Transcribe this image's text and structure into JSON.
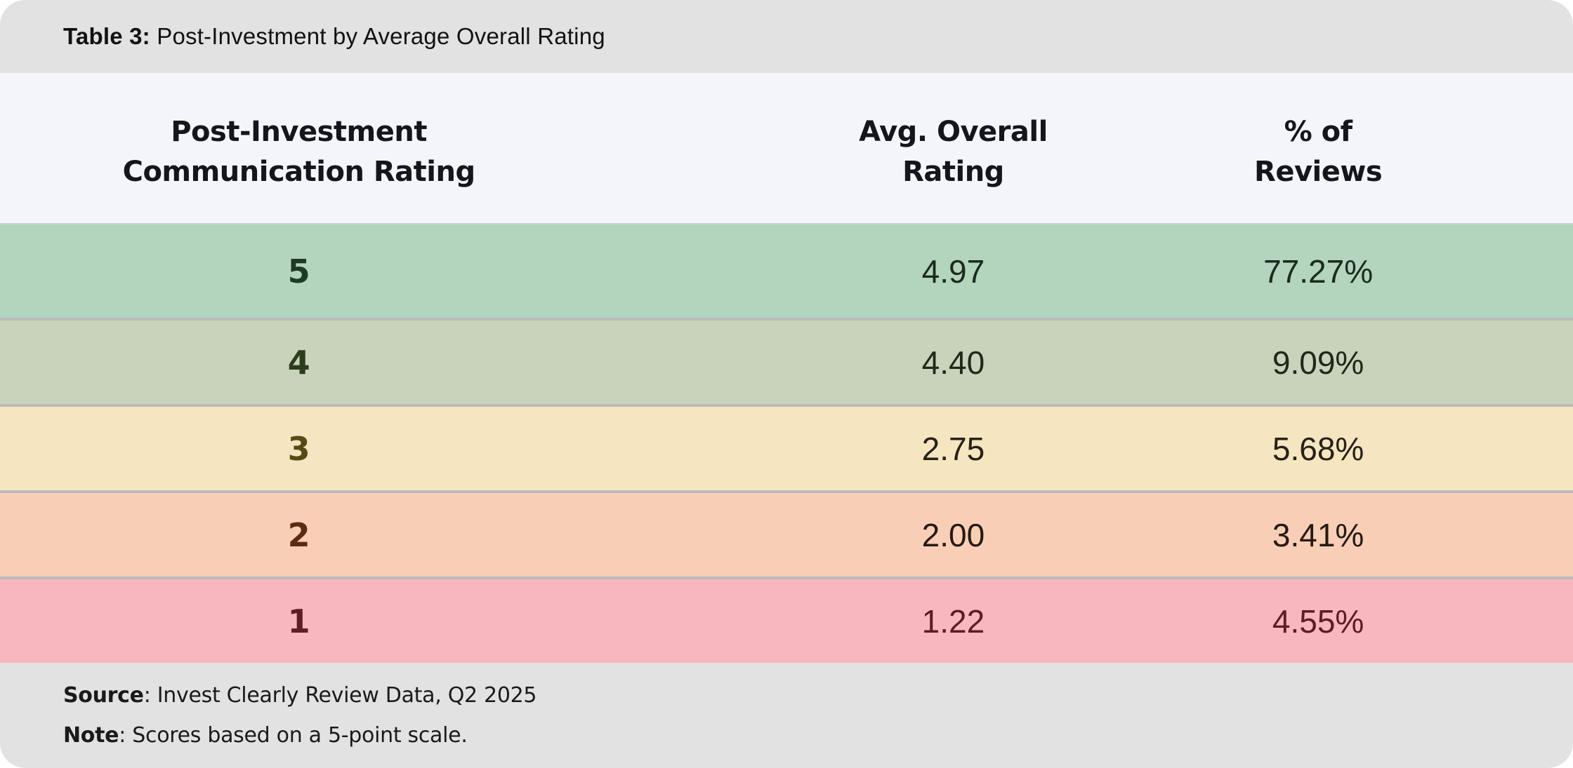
{
  "title": {
    "label": "Table 3:",
    "text": " Post-Investment by Average Overall Rating"
  },
  "columns": [
    {
      "line1": "Post-Investment",
      "line2": "Communication Rating"
    },
    {
      "line1": "Avg. Overall",
      "line2": "Rating"
    },
    {
      "line1": "% of",
      "line2": "Reviews"
    }
  ],
  "table": {
    "rows": [
      {
        "rating": "5",
        "avg": "4.97",
        "pct": "77.27%",
        "row_color": "#b3d4bd",
        "rating_color": "#1d3a26",
        "value_color": "#1c2a21"
      },
      {
        "rating": "4",
        "avg": "4.40",
        "pct": "9.09%",
        "row_color": "#c9d3bb",
        "rating_color": "#2c3d1e",
        "value_color": "#20281b"
      },
      {
        "rating": "3",
        "avg": "2.75",
        "pct": "5.68%",
        "row_color": "#f6e5c1",
        "rating_color": "#564a15",
        "value_color": "#262115"
      },
      {
        "rating": "2",
        "avg": "2.00",
        "pct": "3.41%",
        "row_color": "#f8cfb6",
        "rating_color": "#5c2c12",
        "value_color": "#261a12"
      },
      {
        "rating": "1",
        "avg": "1.22",
        "pct": "4.55%",
        "row_color": "#f8b6bf",
        "rating_color": "#5e1e28",
        "value_color": "#5c1c26"
      }
    ]
  },
  "footer": {
    "source_label": "Source",
    "source_text": ": Invest Clearly Review Data, Q2 2025",
    "note_label": "Note",
    "note_text": ": Scores based on a 5-point scale."
  },
  "colors": {
    "titlebar_bg": "#e2e2e2",
    "header_bg": "#f4f5fa",
    "footer_bg": "#e2e2e2",
    "separator": "#b9bbbd",
    "header_text": "#14161c",
    "page_bg": "#ffffff"
  },
  "chart_data": {
    "type": "table",
    "title": "Table 3: Post-Investment by Average Overall Rating",
    "columns": [
      "Post-Investment Communication Rating",
      "Avg. Overall Rating",
      "% of Reviews"
    ],
    "rows": [
      [
        5,
        4.97,
        "77.27%"
      ],
      [
        4,
        4.4,
        "9.09%"
      ],
      [
        3,
        2.75,
        "5.68%"
      ],
      [
        2,
        2.0,
        "3.41%"
      ],
      [
        1,
        1.22,
        "4.55%"
      ]
    ],
    "source": "Invest Clearly Review Data, Q2 2025",
    "note": "Scores based on a 5-point scale.",
    "layout_hints": {
      "row_color_scale": "green-to-red by rating",
      "ratings_sorted": "descending"
    }
  }
}
